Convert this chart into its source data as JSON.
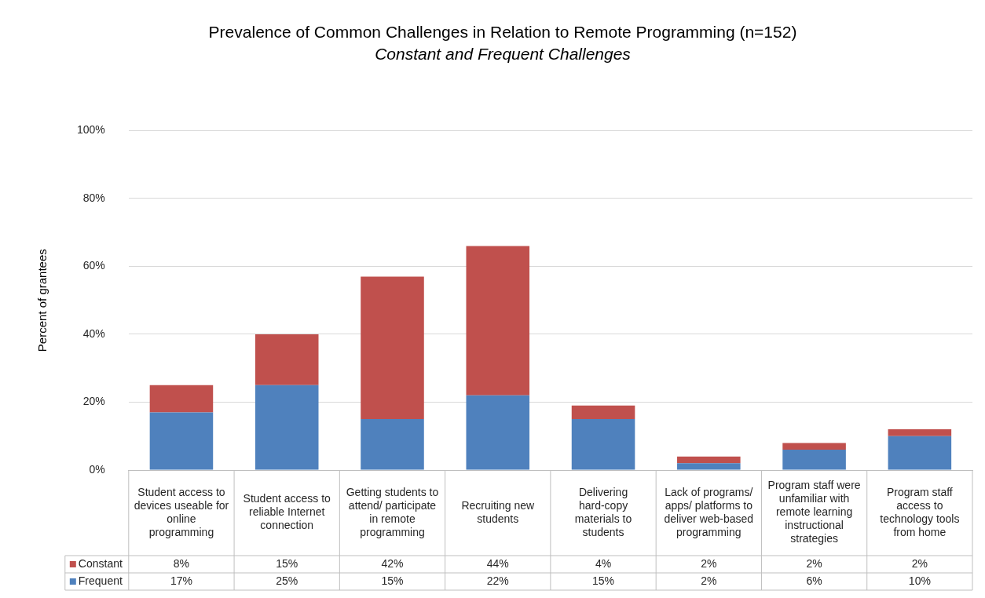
{
  "chart_data": {
    "type": "bar",
    "stacked": true,
    "title": "Prevalence of Common Challenges in Relation to Remote Programming (n=152)",
    "subtitle": "Constant and Frequent Challenges",
    "ylabel": "Percent of grantees",
    "categories": [
      "Student access to devices useable for online programming",
      "Student access to reliable Internet connection",
      "Getting students to attend/ participate in remote programming",
      "Recruiting new students",
      "Delivering hard-copy materials to students",
      "Lack of programs/ apps/ platforms to deliver web-based programming",
      "Program staff were unfamiliar with remote learning instructional strategies",
      "Program staff access to technology tools from home"
    ],
    "series": [
      {
        "name": "Frequent",
        "color": "#4f81bd",
        "values": [
          17,
          25,
          15,
          22,
          15,
          2,
          6,
          10
        ],
        "value_labels": [
          "17%",
          "25%",
          "15%",
          "22%",
          "15%",
          "2%",
          "6%",
          "10%"
        ]
      },
      {
        "name": "Constant",
        "color": "#c0504d",
        "values": [
          8,
          15,
          42,
          44,
          4,
          2,
          2,
          2
        ],
        "value_labels": [
          "8%",
          "15%",
          "42%",
          "44%",
          "4%",
          "2%",
          "2%",
          "2%"
        ]
      }
    ],
    "ylim": [
      0,
      100
    ],
    "yticks": [
      {
        "value": 0,
        "label": "0%"
      },
      {
        "value": 20,
        "label": "20%"
      },
      {
        "value": 40,
        "label": "40%"
      },
      {
        "value": 60,
        "label": "60%"
      },
      {
        "value": 80,
        "label": "80%"
      },
      {
        "value": 100,
        "label": "100%"
      }
    ],
    "grid": "y",
    "legend": "bottom"
  }
}
